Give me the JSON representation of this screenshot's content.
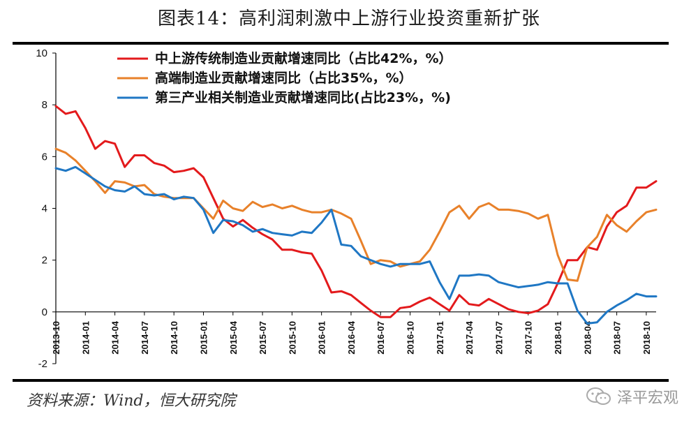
{
  "title": "图表14：高利润刺激中上游行业投资重新扩张",
  "source": "资料来源：Wind，恒大研究院",
  "brand": {
    "label": "泽平宏观",
    "icon": "wechat-icon"
  },
  "chart_data": {
    "type": "line",
    "ylim": [
      -2,
      10
    ],
    "yticks": [
      "-2",
      "0",
      "2",
      "4",
      "6",
      "8",
      "10"
    ],
    "x": [
      "2013-10",
      "2013-11",
      "2013-12",
      "2014-01",
      "2014-02",
      "2014-03",
      "2014-04",
      "2014-05",
      "2014-06",
      "2014-07",
      "2014-08",
      "2014-09",
      "2014-10",
      "2014-11",
      "2014-12",
      "2015-01",
      "2015-02",
      "2015-03",
      "2015-04",
      "2015-05",
      "2015-06",
      "2015-07",
      "2015-08",
      "2015-09",
      "2015-10",
      "2015-11",
      "2015-12",
      "2016-01",
      "2016-02",
      "2016-03",
      "2016-04",
      "2016-05",
      "2016-06",
      "2016-07",
      "2016-08",
      "2016-09",
      "2016-10",
      "2016-11",
      "2016-12",
      "2017-01",
      "2017-02",
      "2017-03",
      "2017-04",
      "2017-05",
      "2017-06",
      "2017-07",
      "2017-08",
      "2017-09",
      "2017-10",
      "2017-11",
      "2017-12",
      "2018-01",
      "2018-02",
      "2018-03",
      "2018-04",
      "2018-05",
      "2018-06",
      "2018-07",
      "2018-08",
      "2018-09",
      "2018-10",
      "2018-11"
    ],
    "xtick_labels": [
      "2013-10",
      "2014-01",
      "2014-04",
      "2014-07",
      "2014-10",
      "2015-01",
      "2015-04",
      "2015-07",
      "2015-10",
      "2016-01",
      "2016-04",
      "2016-07",
      "2016-10",
      "2017-01",
      "2017-04",
      "2017-07",
      "2017-10",
      "2018-01",
      "2018-04",
      "2018-07",
      "2018-10"
    ],
    "legend_position": "top",
    "series": [
      {
        "name": "中上游传统制造业贡献增速同比（占比42%，%）",
        "color": "#e31a1c",
        "values": [
          7.95,
          7.65,
          7.75,
          7.1,
          6.3,
          6.6,
          6.5,
          5.6,
          6.05,
          6.05,
          5.75,
          5.65,
          5.4,
          5.45,
          5.55,
          5.2,
          4.4,
          3.6,
          3.3,
          3.55,
          3.25,
          3.0,
          2.8,
          2.4,
          2.4,
          2.3,
          2.25,
          1.6,
          0.75,
          0.8,
          0.65,
          0.35,
          0.05,
          -0.2,
          -0.2,
          0.15,
          0.2,
          0.4,
          0.55,
          0.3,
          0.05,
          0.65,
          0.3,
          0.25,
          0.5,
          0.3,
          0.1,
          0.0,
          -0.05,
          0.05,
          0.3,
          1.1,
          2.0,
          2.0,
          2.5,
          2.4,
          3.3,
          3.85,
          4.1,
          4.8,
          4.8,
          5.05
        ]
      },
      {
        "name": "高端制造业贡献增速同比（占比35%，%）",
        "color": "#e8812a",
        "values": [
          6.3,
          6.15,
          5.85,
          5.45,
          5.05,
          4.6,
          5.05,
          5.0,
          4.85,
          4.9,
          4.55,
          4.45,
          4.4,
          4.4,
          4.4,
          4.0,
          3.6,
          4.3,
          4.0,
          3.9,
          4.25,
          4.05,
          4.15,
          4.0,
          4.1,
          3.95,
          3.85,
          3.85,
          3.95,
          3.8,
          3.6,
          2.75,
          1.85,
          2.0,
          1.95,
          1.75,
          1.85,
          1.95,
          2.4,
          3.1,
          3.85,
          4.1,
          3.6,
          4.05,
          4.2,
          3.95,
          3.95,
          3.9,
          3.8,
          3.6,
          3.75,
          2.2,
          1.25,
          1.2,
          2.5,
          2.9,
          3.75,
          3.35,
          3.1,
          3.5,
          3.85,
          3.95
        ]
      },
      {
        "name": "第三产业相关制造业贡献增速同比(占比23%，%)",
        "color": "#1f77c4",
        "values": [
          5.55,
          5.45,
          5.6,
          5.35,
          5.1,
          4.85,
          4.7,
          4.65,
          4.85,
          4.55,
          4.5,
          4.55,
          4.35,
          4.45,
          4.4,
          3.95,
          3.05,
          3.55,
          3.5,
          3.35,
          3.1,
          3.2,
          3.05,
          3.0,
          2.95,
          3.1,
          3.05,
          3.45,
          3.95,
          2.6,
          2.55,
          2.15,
          2.0,
          1.85,
          1.75,
          1.85,
          1.85,
          1.85,
          1.95,
          1.15,
          0.5,
          1.4,
          1.4,
          1.45,
          1.4,
          1.15,
          1.05,
          0.95,
          1.0,
          1.05,
          1.15,
          1.1,
          1.1,
          0.05,
          -0.45,
          -0.4,
          0.0,
          0.25,
          0.45,
          0.7,
          0.6,
          0.6
        ]
      }
    ]
  }
}
